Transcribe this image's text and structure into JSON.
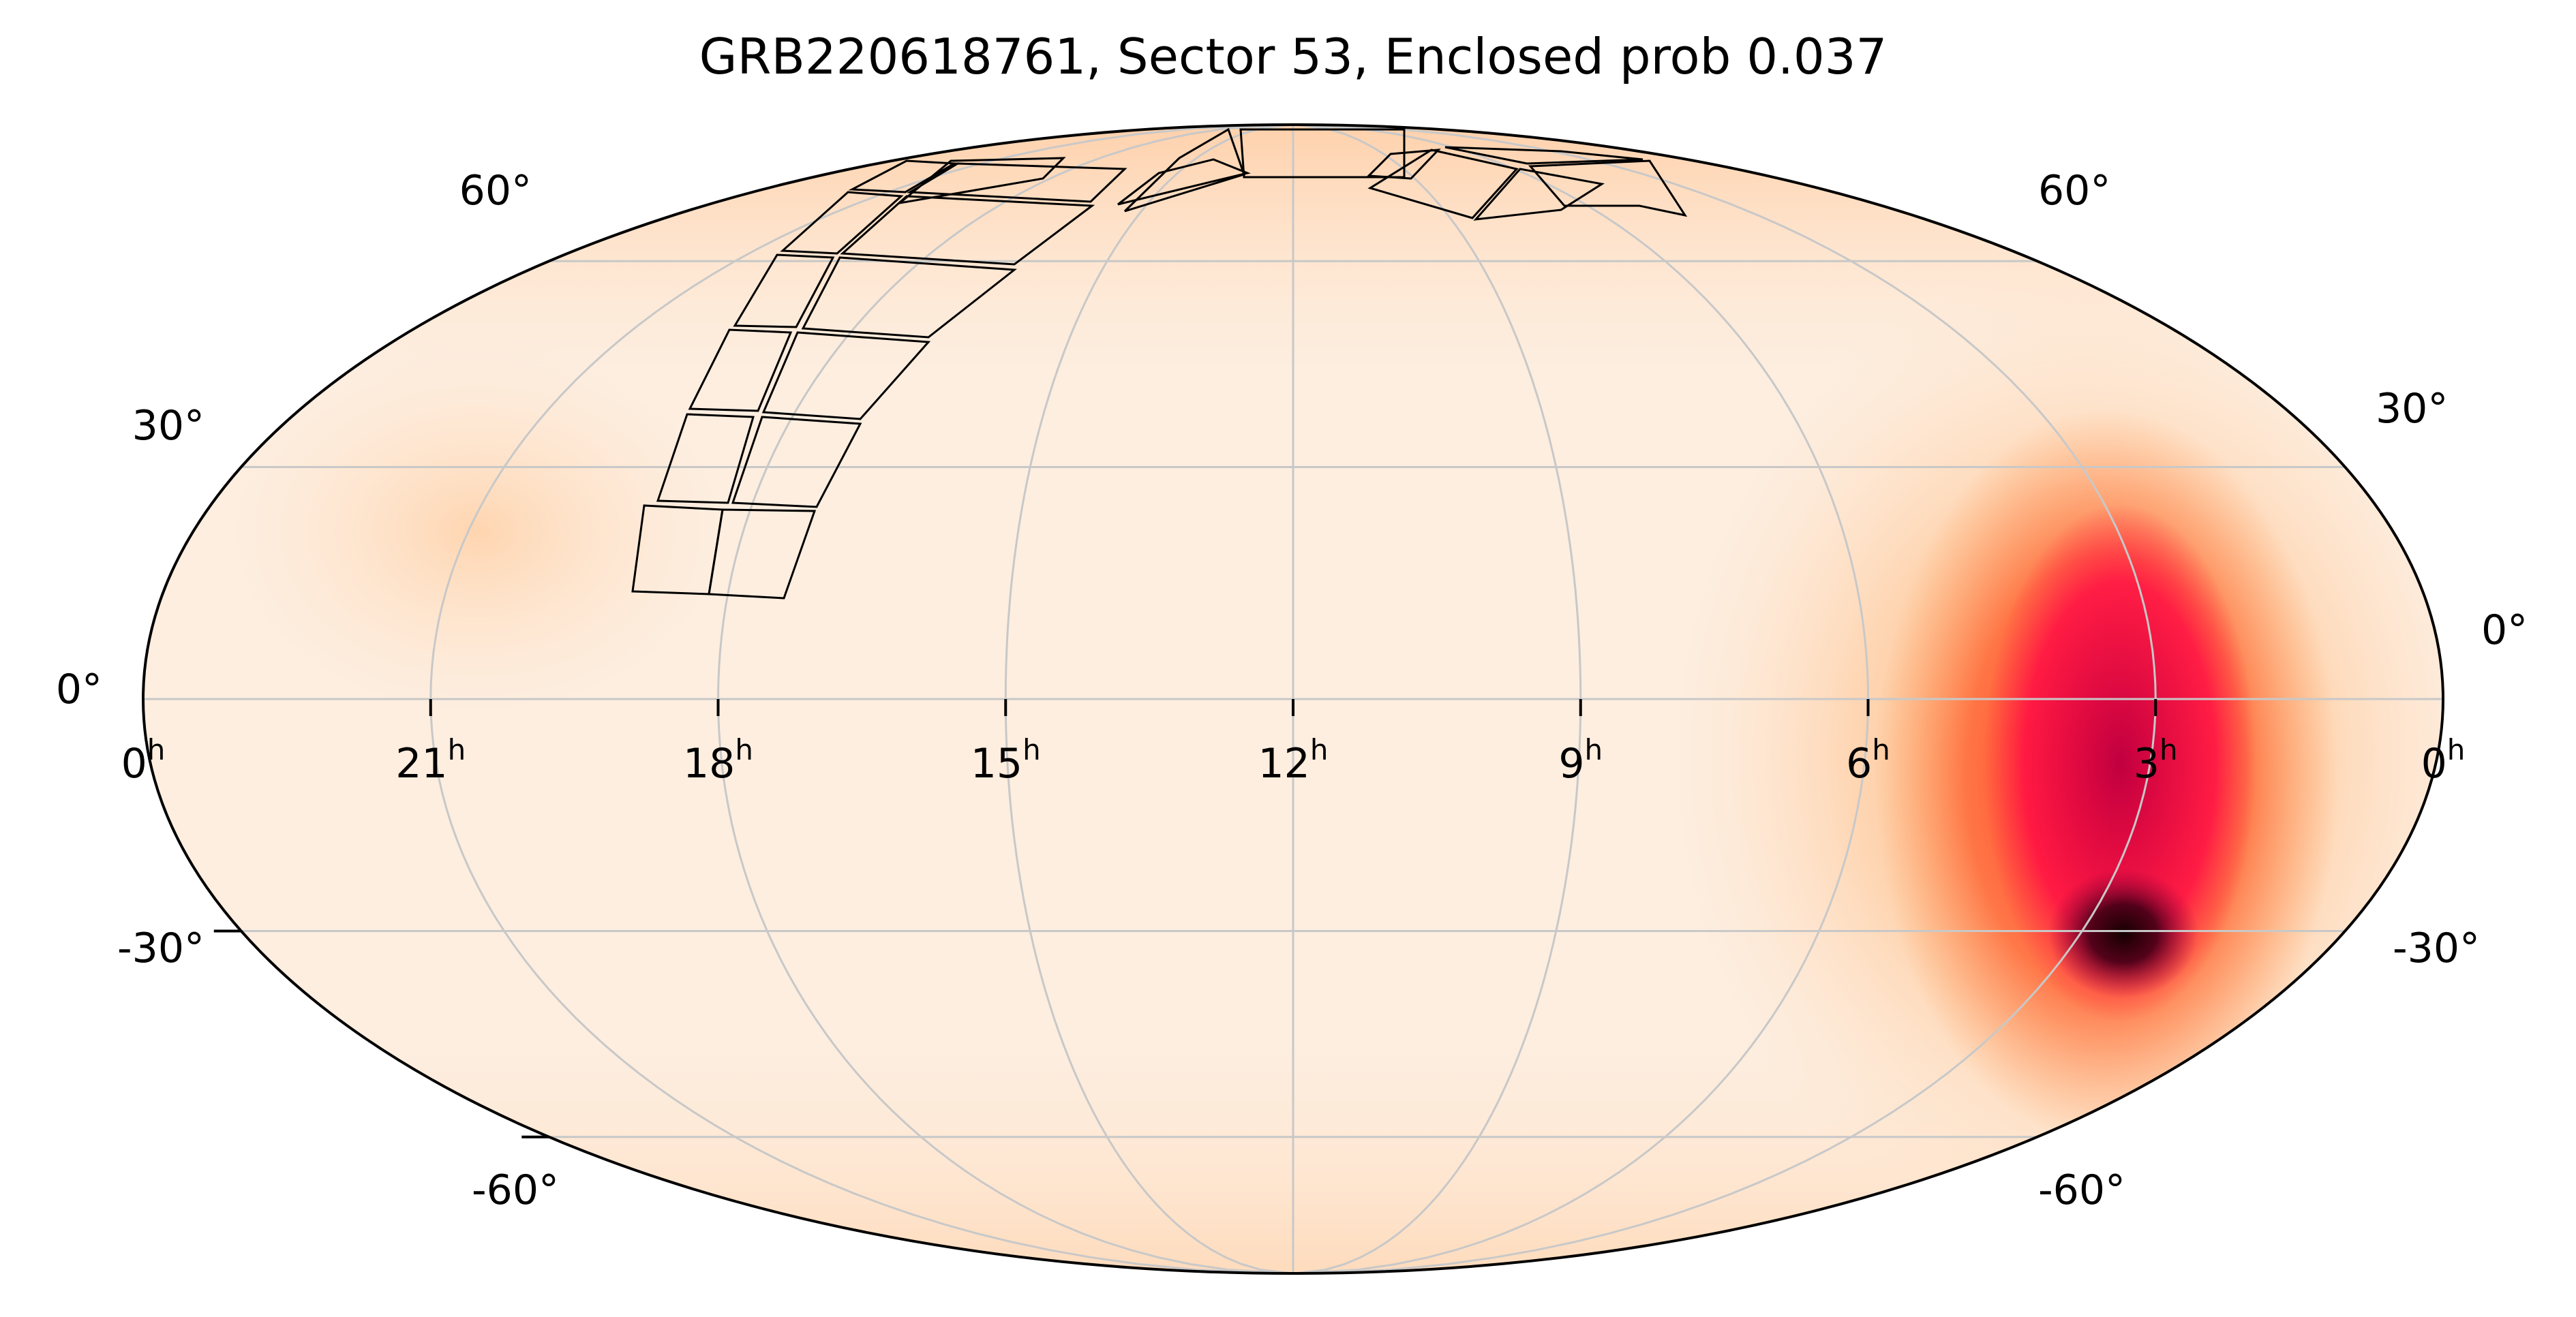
{
  "title": "GRB220618761, Sector 53, Enclosed prob 0.037",
  "projection": "mollweide",
  "grid": true,
  "colormap": "light orange to red to black (higher probability darker)",
  "colors": {
    "background": "#ffffff",
    "map_low": "#fff0e2",
    "map_mid": "#ffb070",
    "map_high": "#ff1040",
    "map_peak": "#1a0000",
    "grid": "#c8c8c8",
    "footprint": "#000000"
  },
  "ra_ticks": [
    {
      "value": 0,
      "label": "0"
    },
    {
      "value": 21,
      "label": "21"
    },
    {
      "value": 18,
      "label": "18"
    },
    {
      "value": 15,
      "label": "15"
    },
    {
      "value": 12,
      "label": "12"
    },
    {
      "value": 9,
      "label": "9"
    },
    {
      "value": 6,
      "label": "6"
    },
    {
      "value": 3,
      "label": "3"
    },
    {
      "value": 0,
      "label": "0"
    }
  ],
  "ra_unit": "h",
  "dec_ticks_left": [
    {
      "value": 60,
      "label": "60°"
    },
    {
      "value": 30,
      "label": "30°"
    },
    {
      "value": 0,
      "label": "0°"
    },
    {
      "value": -30,
      "label": "-30°"
    },
    {
      "value": -60,
      "label": "-60°"
    }
  ],
  "dec_ticks_right": [
    {
      "value": 60,
      "label": "60°"
    },
    {
      "value": 30,
      "label": "30°"
    },
    {
      "value": 0,
      "label": "0°"
    },
    {
      "value": -30,
      "label": "-30°"
    },
    {
      "value": -60,
      "label": "-60°"
    }
  ],
  "probability_peak": {
    "ra_h": 2.7,
    "dec_deg": -33
  },
  "tess_sector": 53
}
